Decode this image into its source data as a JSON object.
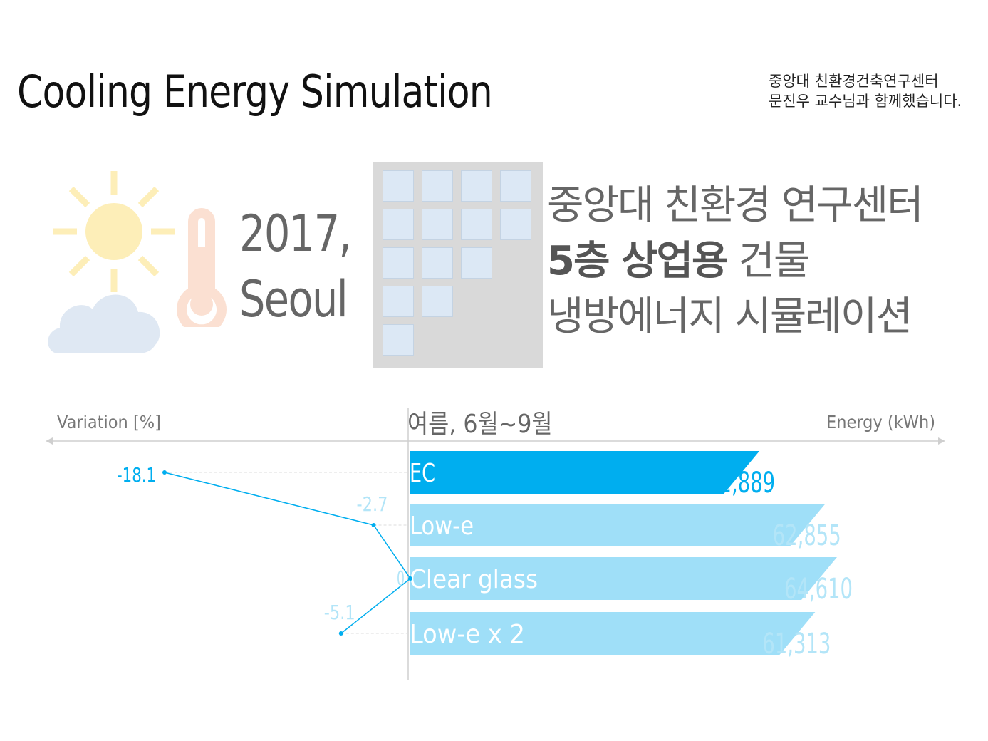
{
  "header": {
    "title": "Cooling Energy Simulation",
    "credit_line1": "중앙대 친환경건축연구센터",
    "credit_line2": "문진우 교수님과 함께했습니다."
  },
  "intro": {
    "year": "2017,",
    "city": "Seoul",
    "desc_line1": "중앙대 친환경 연구센터",
    "desc_line2_bold": "5층 상업용",
    "desc_line2_rest": " 건물",
    "desc_line3": "냉방에너지 시뮬레이션"
  },
  "icons": {
    "sun": "sun-icon",
    "cloud": "cloud-icon",
    "thermometer": "thermometer-icon",
    "building": "building-icon"
  },
  "colors": {
    "highlight": "#00aeef",
    "bar_light": "#9fdff8",
    "label_light": "#b3e5f8",
    "sun": "#fdeeb8",
    "cloud": "#dfe8f3",
    "thermometer": "#fbe0d2",
    "building": "#d9d9d9",
    "window": "#dce8f5"
  },
  "chart_data": {
    "type": "bar",
    "period_label": "여름, 6월~9월",
    "left_axis_label": "Variation [%]",
    "right_axis_label": "Energy (kWh)",
    "categories": [
      "EC",
      "Low-e",
      "Clear glass",
      "Low-e x 2"
    ],
    "energy_values": [
      52889,
      62855,
      64610,
      61313
    ],
    "energy_labels": [
      "52,889",
      "62,855",
      "64,610",
      "61,313"
    ],
    "variation_values": [
      -18.1,
      -2.7,
      0,
      -5.1
    ],
    "variation_labels": [
      "-18.1",
      "-2.7",
      "0",
      "-5.1"
    ],
    "highlight_index": 0,
    "grid": false
  }
}
